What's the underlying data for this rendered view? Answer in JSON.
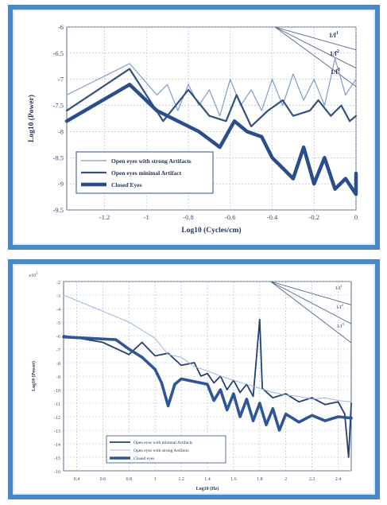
{
  "chart_data": [
    {
      "type": "line",
      "title": "",
      "xlabel": "Log10 (Cycles/cm)",
      "ylabel": "Log10 (Power)",
      "xlim": [
        -1.38,
        0.0
      ],
      "ylim": [
        -9.5,
        -6.0
      ],
      "x_ticks": [
        -1.2,
        -1.0,
        -0.8,
        -0.6,
        -0.4,
        -0.2,
        0
      ],
      "x_tick_labels": [
        "-1.2",
        "-1",
        "-0.8",
        "-0.6",
        "-0.4",
        "-0.2",
        "0"
      ],
      "y_ticks": [
        -9.5,
        -9,
        -8.5,
        -8,
        -7.5,
        -7,
        -6.5,
        -6
      ],
      "y_tick_labels": [
        "-9.5",
        "-9",
        "-8.5",
        "-8",
        "-7.5",
        "-7",
        "-6.5",
        "-6"
      ],
      "grid": true,
      "legend_position": "lower-left",
      "series": [
        {
          "name": "Open eyes with strong Artifacts",
          "color": "#7f9cc2",
          "width": 1.2,
          "points": [
            [
              -1.38,
              -7.3
            ],
            [
              -1.08,
              -6.7
            ],
            [
              -0.95,
              -7.3
            ],
            [
              -0.9,
              -7.1
            ],
            [
              -0.85,
              -7.6
            ],
            [
              -0.8,
              -7.1
            ],
            [
              -0.75,
              -7.5
            ],
            [
              -0.7,
              -7.2
            ],
            [
              -0.65,
              -7.7
            ],
            [
              -0.6,
              -7.0
            ],
            [
              -0.55,
              -7.5
            ],
            [
              -0.5,
              -7.2
            ],
            [
              -0.45,
              -7.6
            ],
            [
              -0.4,
              -7.0
            ],
            [
              -0.35,
              -7.5
            ],
            [
              -0.3,
              -6.9
            ],
            [
              -0.25,
              -7.4
            ],
            [
              -0.2,
              -7.0
            ],
            [
              -0.15,
              -7.5
            ],
            [
              -0.1,
              -6.6
            ],
            [
              -0.05,
              -7.3
            ],
            [
              0,
              -7.0
            ]
          ]
        },
        {
          "name": "Open eyes minimal Artifact",
          "color": "#33507e",
          "width": 2.2,
          "points": [
            [
              -1.38,
              -7.6
            ],
            [
              -1.08,
              -6.8
            ],
            [
              -0.92,
              -7.8
            ],
            [
              -0.8,
              -7.2
            ],
            [
              -0.7,
              -7.7
            ],
            [
              -0.62,
              -7.8
            ],
            [
              -0.57,
              -7.3
            ],
            [
              -0.5,
              -7.9
            ],
            [
              -0.42,
              -7.6
            ],
            [
              -0.35,
              -7.4
            ],
            [
              -0.3,
              -7.7
            ],
            [
              -0.22,
              -7.6
            ],
            [
              -0.18,
              -7.4
            ],
            [
              -0.12,
              -7.7
            ],
            [
              -0.07,
              -7.5
            ],
            [
              -0.03,
              -7.8
            ],
            [
              0,
              -7.7
            ]
          ]
        },
        {
          "name": "Closed Eyes",
          "color": "#2a4e8c",
          "width": 4.5,
          "points": [
            [
              -1.38,
              -7.8
            ],
            [
              -1.08,
              -7.1
            ],
            [
              -0.95,
              -7.6
            ],
            [
              -0.85,
              -7.8
            ],
            [
              -0.75,
              -8.0
            ],
            [
              -0.65,
              -8.3
            ],
            [
              -0.58,
              -7.8
            ],
            [
              -0.52,
              -8.0
            ],
            [
              -0.45,
              -8.1
            ],
            [
              -0.4,
              -8.5
            ],
            [
              -0.35,
              -8.7
            ],
            [
              -0.3,
              -8.9
            ],
            [
              -0.25,
              -8.3
            ],
            [
              -0.2,
              -9.0
            ],
            [
              -0.15,
              -8.5
            ],
            [
              -0.1,
              -9.1
            ],
            [
              -0.05,
              -8.9
            ],
            [
              0,
              -9.2
            ],
            [
              0,
              -8.8
            ]
          ]
        }
      ],
      "reference_slopes": [
        {
          "label": "1/f",
          "exponent": "1"
        },
        {
          "label": "1/f",
          "exponent": "2"
        },
        {
          "label": "1/f",
          "exponent": "3"
        }
      ]
    },
    {
      "type": "line",
      "title": "",
      "exponent_label": "x10",
      "exponent_value": "3",
      "xlabel": "Log10 (Hz)",
      "ylabel": "Log10 (Power)",
      "xlim": [
        0.3,
        2.5
      ],
      "ylim": [
        -16,
        -2
      ],
      "x_ticks": [
        0.4,
        0.6,
        0.8,
        1,
        1.2,
        1.4,
        1.6,
        1.8,
        2,
        2.2,
        2.4
      ],
      "x_tick_labels": [
        "0.4",
        "0.6",
        "0.8",
        "1",
        "1.2",
        "1.4",
        "1.6",
        "1.8",
        "2",
        "2.2",
        "2.4"
      ],
      "y_ticks": [
        -2,
        -3,
        -4,
        -5,
        -6,
        -7,
        -8,
        -9,
        -10,
        -11,
        -12,
        -13,
        -14,
        -15,
        -16
      ],
      "y_tick_labels": [
        "-2",
        "-3",
        "-4",
        "-5",
        "-6",
        "-7",
        "-8",
        "-9",
        "-10",
        "-11",
        "-12",
        "-13",
        "-14",
        "-15",
        "-16"
      ],
      "grid": true,
      "legend_position": "lower-left",
      "series": [
        {
          "name": "Open eyes with minimal Artifacts",
          "color": "#24406e",
          "width": 1.8,
          "points": [
            [
              0.3,
              -6.0
            ],
            [
              0.6,
              -6.5
            ],
            [
              0.8,
              -7.4
            ],
            [
              0.9,
              -6.5
            ],
            [
              1.0,
              -7.5
            ],
            [
              1.1,
              -7.3
            ],
            [
              1.2,
              -8.2
            ],
            [
              1.3,
              -8.0
            ],
            [
              1.35,
              -9.0
            ],
            [
              1.4,
              -8.8
            ],
            [
              1.45,
              -9.5
            ],
            [
              1.5,
              -9.0
            ],
            [
              1.55,
              -10.0
            ],
            [
              1.6,
              -9.3
            ],
            [
              1.65,
              -10.2
            ],
            [
              1.7,
              -9.6
            ],
            [
              1.75,
              -10.5
            ],
            [
              1.8,
              -4.8
            ],
            [
              1.82,
              -9.9
            ],
            [
              1.9,
              -10.6
            ],
            [
              2.0,
              -10.3
            ],
            [
              2.1,
              -10.9
            ],
            [
              2.2,
              -10.6
            ],
            [
              2.3,
              -11.1
            ],
            [
              2.4,
              -10.9
            ],
            [
              2.45,
              -11.8
            ],
            [
              2.48,
              -15.0
            ],
            [
              2.5,
              -11.0
            ]
          ]
        },
        {
          "name": "Open eyes with strong Artifacts",
          "color": "#9fb5d8",
          "width": 1.0,
          "points": [
            [
              0.3,
              -3.0
            ],
            [
              0.6,
              -4.2
            ],
            [
              0.8,
              -5.0
            ],
            [
              1.0,
              -6.2
            ],
            [
              1.1,
              -7.4
            ],
            [
              1.2,
              -7.6
            ],
            [
              1.3,
              -8.3
            ],
            [
              1.4,
              -8.6
            ],
            [
              1.5,
              -9.0
            ],
            [
              1.6,
              -9.3
            ],
            [
              1.7,
              -9.6
            ],
            [
              1.8,
              -9.9
            ],
            [
              1.9,
              -10.2
            ],
            [
              2.0,
              -10.4
            ],
            [
              2.1,
              -10.5
            ],
            [
              2.2,
              -10.7
            ],
            [
              2.3,
              -10.6
            ],
            [
              2.4,
              -10.8
            ],
            [
              2.5,
              -10.9
            ]
          ]
        },
        {
          "name": "Closed eyes",
          "color": "#2f5694",
          "width": 3.6,
          "points": [
            [
              0.3,
              -6.1
            ],
            [
              0.7,
              -6.3
            ],
            [
              0.8,
              -7.0
            ],
            [
              0.9,
              -7.6
            ],
            [
              1.0,
              -8.5
            ],
            [
              1.05,
              -9.5
            ],
            [
              1.1,
              -11.2
            ],
            [
              1.15,
              -9.6
            ],
            [
              1.2,
              -9.2
            ],
            [
              1.3,
              -9.4
            ],
            [
              1.4,
              -9.6
            ],
            [
              1.45,
              -10.8
            ],
            [
              1.5,
              -10.0
            ],
            [
              1.55,
              -11.5
            ],
            [
              1.6,
              -10.3
            ],
            [
              1.65,
              -12.0
            ],
            [
              1.7,
              -10.7
            ],
            [
              1.75,
              -12.3
            ],
            [
              1.8,
              -11.0
            ],
            [
              1.85,
              -12.6
            ],
            [
              1.9,
              -11.4
            ],
            [
              1.95,
              -13.0
            ],
            [
              2.0,
              -11.8
            ],
            [
              2.1,
              -12.4
            ],
            [
              2.2,
              -11.9
            ],
            [
              2.3,
              -12.3
            ],
            [
              2.4,
              -12.0
            ],
            [
              2.5,
              -12.1
            ]
          ]
        }
      ],
      "reference_slopes": [
        {
          "label": "1/f",
          "exponent": "1"
        },
        {
          "label": "1/f",
          "exponent": "2"
        },
        {
          "label": "1/f",
          "exponent": "3"
        }
      ]
    }
  ]
}
